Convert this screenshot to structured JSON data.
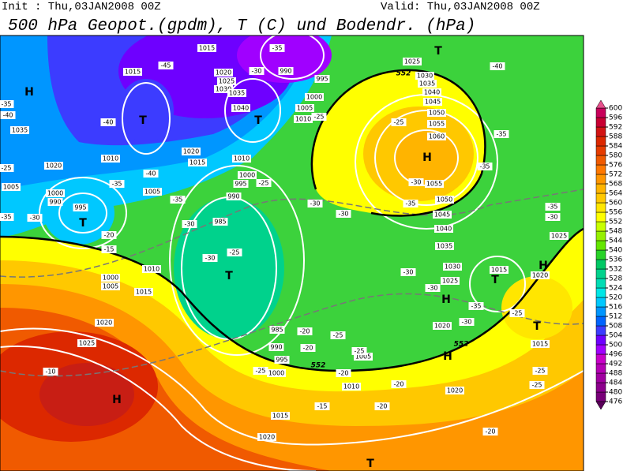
{
  "header": {
    "init": "Init : Thu,03JAN2008 00Z",
    "valid": "Valid: Thu,03JAN2008 00Z",
    "title": "500 hPa Geopot.(gpdm), T (C) und Bodendr. (hPa)"
  },
  "map": {
    "pressure_centers": [
      "H",
      "T",
      "T",
      "T",
      "H",
      "H",
      "T",
      "H",
      "T",
      "H",
      "H",
      "T",
      "T",
      "T"
    ],
    "isobar_labels": [
      "1015",
      "1015",
      "1020",
      "1025",
      "1030",
      "1035",
      "1040",
      "1035",
      "1020",
      "1010",
      "1015",
      "1020",
      "1010",
      "1000",
      "995",
      "990",
      "1005",
      "985",
      "1005",
      "1000",
      "990",
      "995",
      "1000",
      "1005",
      "1010",
      "1015",
      "1020",
      "1025",
      "985",
      "990",
      "995",
      "1000",
      "1005",
      "1010",
      "1015",
      "1020",
      "1020",
      "1015",
      "1020",
      "1025",
      "1015",
      "1025",
      "1030",
      "1035",
      "1040",
      "1045",
      "1050",
      "1055",
      "1060",
      "1055",
      "1050",
      "1045",
      "1040",
      "1035",
      "1030",
      "1025",
      "1000",
      "995",
      "1005",
      "1010",
      "990",
      "1020"
    ],
    "temperature_labels": [
      "-45",
      "-40",
      "-40",
      "-35",
      "-35",
      "-30",
      "-25",
      "-30",
      "-20",
      "-15",
      "-10",
      "-35",
      "-30",
      "-25",
      "-40",
      "-35",
      "-35",
      "-30",
      "-25",
      "-25",
      "-30",
      "-30",
      "-35",
      "-30",
      "-30",
      "-35",
      "-30",
      "-25",
      "-20",
      "-25",
      "-20",
      "-25",
      "-25",
      "-20",
      "-20",
      "-15",
      "-20",
      "-20",
      "-25",
      "-25",
      "-30",
      "-35",
      "-35",
      "-30",
      "-40",
      "-35",
      "-25"
    ],
    "height_labels": [
      "552",
      "552",
      "552"
    ]
  },
  "colorbar": {
    "levels": [
      476,
      480,
      484,
      488,
      492,
      496,
      500,
      504,
      508,
      512,
      516,
      520,
      524,
      528,
      532,
      536,
      540,
      544,
      548,
      552,
      556,
      560,
      564,
      568,
      572,
      576,
      580,
      584,
      588,
      592,
      596,
      600
    ],
    "colors": [
      "#5a005a",
      "#780078",
      "#8c008c",
      "#a000a0",
      "#b400b4",
      "#c800c8",
      "#a000ff",
      "#6e00ff",
      "#3c3cff",
      "#0064ff",
      "#0096ff",
      "#00c8ff",
      "#00e6e6",
      "#00dcb4",
      "#00d28c",
      "#00c864",
      "#28d228",
      "#64e600",
      "#96f000",
      "#c8ff00",
      "#ffff00",
      "#ffe600",
      "#ffc800",
      "#ffb400",
      "#ff9600",
      "#ff7800",
      "#f05a00",
      "#e63c00",
      "#dc2800",
      "#d21414",
      "#c80032",
      "#c8005a",
      "#e6508c"
    ]
  }
}
